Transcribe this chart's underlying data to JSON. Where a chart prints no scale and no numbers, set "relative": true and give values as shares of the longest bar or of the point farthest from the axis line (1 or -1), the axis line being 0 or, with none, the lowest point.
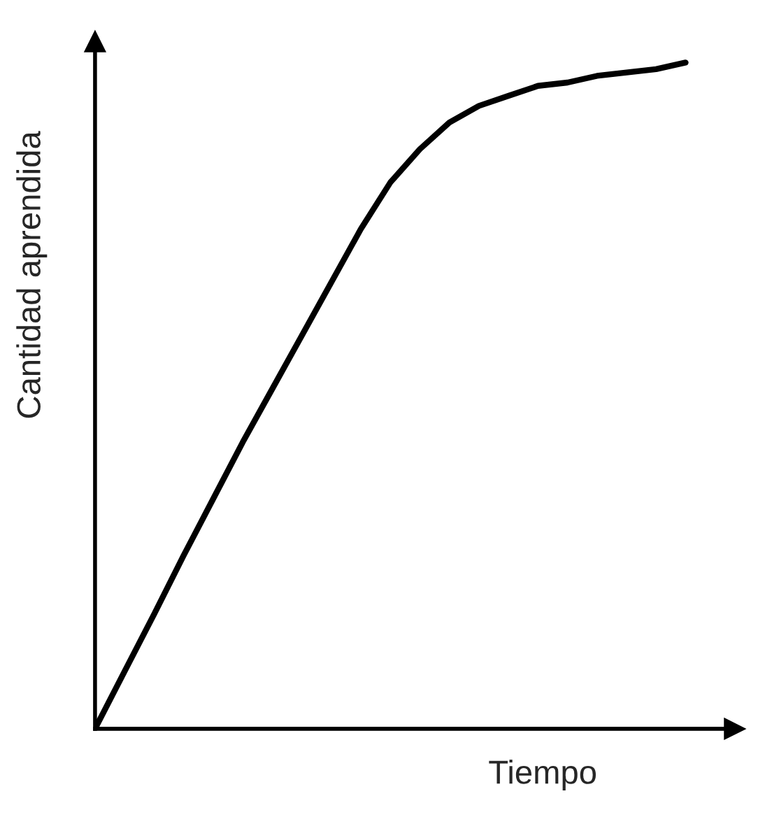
{
  "chart_data": {
    "type": "line",
    "xlabel": "Tiempo",
    "ylabel": "Cantidad aprendida",
    "relative": true,
    "color": "#000000",
    "categories": [
      null,
      null,
      null,
      null,
      null,
      null,
      null,
      null,
      null,
      null,
      null,
      null,
      null,
      null,
      null,
      null,
      null,
      null,
      null,
      null,
      null
    ],
    "values": [
      0,
      0.086,
      0.172,
      0.26,
      0.345,
      0.43,
      0.51,
      0.59,
      0.67,
      0.75,
      0.82,
      0.87,
      0.91,
      0.935,
      0.95,
      0.965,
      0.97,
      0.98,
      0.985,
      0.99,
      1.0
    ]
  }
}
